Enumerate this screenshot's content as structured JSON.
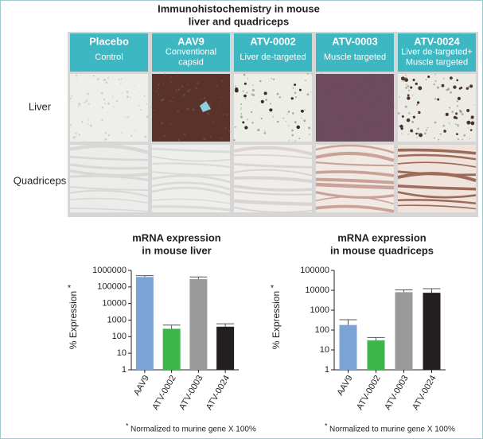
{
  "figure": {
    "title_lines": [
      "Immunohistochemistry in mouse",
      "liver and quadriceps"
    ]
  },
  "ihc": {
    "columns": [
      {
        "name": "Placebo",
        "subtitle": [
          "Control"
        ]
      },
      {
        "name": "AAV9",
        "subtitle": [
          "Conventional",
          "capsid"
        ]
      },
      {
        "name": "ATV-0002",
        "subtitle": [
          "Liver de-targeted"
        ]
      },
      {
        "name": "ATV-0003",
        "subtitle": [
          "Muscle targeted"
        ]
      },
      {
        "name": "ATV-0024",
        "subtitle": [
          "Liver de-targeted+",
          "Muscle targeted"
        ]
      }
    ],
    "rows": [
      "Liver",
      "Quadriceps"
    ]
  },
  "chart_data": [
    {
      "type": "bar",
      "title_lines": [
        "mRNA expression",
        "in mouse liver"
      ],
      "ylabel": "% Expression",
      "ylabel_mark": "*",
      "categories": [
        "AAV9",
        "ATV-0002",
        "ATV-0003",
        "ATV-0024"
      ],
      "values": [
        400000,
        300,
        300000,
        400
      ],
      "errors": [
        80000,
        200,
        100000,
        200
      ],
      "colors": [
        "#7ba3d4",
        "#3cb54a",
        "#9a9a9a",
        "#231f20"
      ],
      "log_scale": true,
      "ylim": [
        1,
        1000000
      ],
      "yticks": [
        1,
        10,
        100,
        1000,
        10000,
        100000,
        1000000
      ],
      "footnote_mark": "*",
      "footnote": "Normalized to murine gene X 100%"
    },
    {
      "type": "bar",
      "title_lines": [
        "mRNA expression",
        "in mouse quadriceps"
      ],
      "ylabel": "% Expression",
      "ylabel_mark": "*",
      "categories": [
        "AAV9",
        "ATV-0002",
        "ATV-0003",
        "ATV-0024"
      ],
      "values": [
        180,
        30,
        8000,
        7500
      ],
      "errors": [
        150,
        12,
        2500,
        4500
      ],
      "colors": [
        "#7ba3d4",
        "#3cb54a",
        "#9a9a9a",
        "#231f20"
      ],
      "log_scale": true,
      "ylim": [
        1,
        100000
      ],
      "yticks": [
        1,
        10,
        100,
        1000,
        10000,
        100000
      ],
      "footnote_mark": "*",
      "footnote": "Normalized to murine gene X 100%"
    }
  ]
}
